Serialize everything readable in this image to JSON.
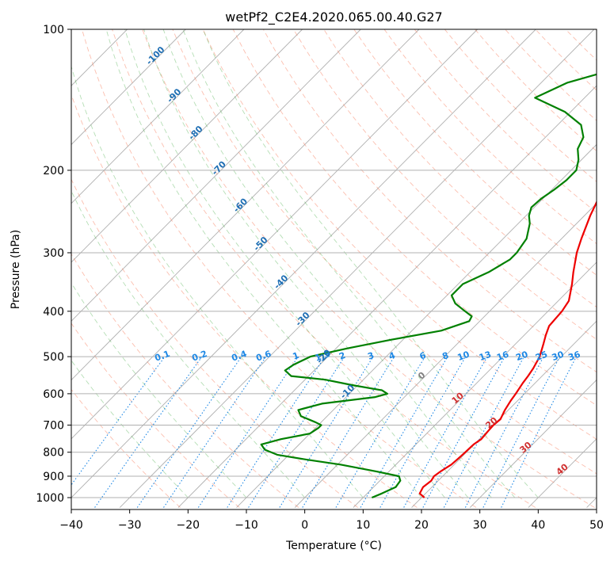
{
  "chart_data": {
    "type": "line",
    "title": "wetPf2_C2E4.2020.065.00.40.G27",
    "xlabel": "Temperature (°C)",
    "ylabel": "Pressure (hPa)",
    "xlim": [
      -40,
      50
    ],
    "ylim": [
      1050,
      100
    ],
    "y_scale": "log",
    "x_ticks": [
      -40,
      -30,
      -20,
      -10,
      0,
      10,
      20,
      30,
      40,
      50
    ],
    "x_tick_labels": [
      "−40",
      "−30",
      "−20",
      "−10",
      "0",
      "10",
      "20",
      "30",
      "40",
      "50"
    ],
    "y_ticks": [
      100,
      200,
      300,
      400,
      500,
      600,
      700,
      800,
      900,
      1000
    ],
    "y_tick_labels": [
      "100",
      "200",
      "300",
      "400",
      "500",
      "600",
      "700",
      "800",
      "900",
      "1000"
    ],
    "grid": true,
    "skew": true,
    "colors": {
      "temperature": "#ee0000",
      "dewpoint": "#008000",
      "isotherm": "#b0b0b0",
      "dry_adiabat": "#fa8060",
      "moist_adiabat": "#2ca02c",
      "mixing_ratio": "#1e88e5"
    },
    "series": [
      {
        "key": "temperature",
        "pressure": [
          1000,
          980,
          950,
          920,
          900,
          880,
          850,
          820,
          800,
          770,
          750,
          720,
          700,
          680,
          650,
          620,
          600,
          570,
          550,
          530,
          500,
          470,
          450,
          430,
          400,
          380,
          350,
          330,
          300,
          280,
          250,
          230,
          210,
          200,
          190,
          180,
          170,
          160,
          150,
          140,
          130,
          120,
          110,
          100
        ],
        "values": [
          20.5,
          19.0,
          18.5,
          18.8,
          18.5,
          18.8,
          19.5,
          19.7,
          19.8,
          19.9,
          20.3,
          20.1,
          20.0,
          20.2,
          19.4,
          18.8,
          18.5,
          17.9,
          17.6,
          17.2,
          16.3,
          14.8,
          13.7,
          12.7,
          12.4,
          11.8,
          9.5,
          7.7,
          5.0,
          3.4,
          1.0,
          -0.5,
          -1.8,
          -1.8,
          -1.0,
          0.0,
          0.2,
          -0.2,
          -0.5,
          -0.4,
          0.0,
          0.4,
          0.6,
          0.8
        ]
      },
      {
        "key": "dewpoint",
        "pressure": [
          1000,
          980,
          950,
          920,
          900,
          880,
          850,
          830,
          810,
          790,
          770,
          750,
          730,
          710,
          700,
          690,
          670,
          650,
          630,
          610,
          600,
          590,
          575,
          560,
          550,
          535,
          520,
          500,
          480,
          460,
          440,
          420,
          410,
          400,
          385,
          370,
          350,
          330,
          310,
          300,
          280,
          260,
          250,
          240,
          230,
          220,
          210,
          200,
          190,
          180,
          170,
          160,
          150,
          140,
          130,
          120,
          110,
          100
        ],
        "values": [
          11.5,
          12.5,
          13.8,
          13.5,
          12.5,
          8.0,
          0.5,
          -6.0,
          -12.0,
          -15.0,
          -16.5,
          -14.0,
          -10.0,
          -9.5,
          -9.5,
          -11.0,
          -14.5,
          -16.0,
          -13.0,
          -5.0,
          -3.5,
          -5.0,
          -11.0,
          -16.5,
          -23.0,
          -25.0,
          -24.5,
          -23.0,
          -18.0,
          -12.0,
          -5.0,
          -1.8,
          -2.2,
          -4.2,
          -7.2,
          -9.2,
          -9.2,
          -6.8,
          -5.3,
          -5.3,
          -6.0,
          -8.0,
          -9.5,
          -10.5,
          -10.3,
          -9.6,
          -9.1,
          -9.1,
          -10.5,
          -12.5,
          -13.5,
          -16.0,
          -21.0,
          -28.5,
          -25.5,
          -18.5,
          -21.5,
          -20.0
        ]
      }
    ],
    "mixing_ratio_labels": [
      "0.1",
      "0.2",
      "0.4",
      "0.6",
      "1",
      "1.5",
      "2",
      "3",
      "4",
      "6",
      "8",
      "10",
      "13",
      "16",
      "20",
      "25",
      "30",
      "36"
    ],
    "moist_adiabat_labels": [
      "-100",
      "-90",
      "-80",
      "-70",
      "-60",
      "-50",
      "-40",
      "-30",
      "-20",
      "-10"
    ],
    "dry_adiabat_labels": [
      "0",
      "10",
      "20",
      "30",
      "40"
    ]
  }
}
